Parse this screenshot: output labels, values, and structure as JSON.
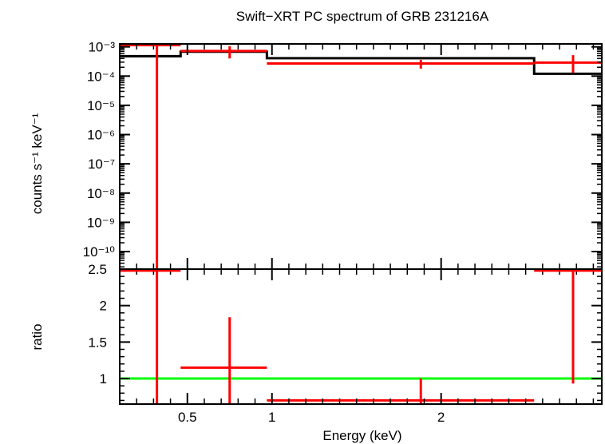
{
  "chart_data": [
    {
      "type": "line",
      "title": "Swift−XRT PC spectrum of GRB 231216A",
      "ylabel": "counts s⁻¹ keV⁻¹",
      "xlabel": "",
      "x_scale": "linear",
      "y_scale": "log",
      "xlim": [
        0.1,
        2.95
      ],
      "ylim_exponent": [
        -10.6,
        -2.9
      ],
      "y_ticks": [
        {
          "exp": -3,
          "label": "10⁻³"
        },
        {
          "exp": -4,
          "label": "10⁻⁴"
        },
        {
          "exp": -5,
          "label": "10⁻⁵"
        },
        {
          "exp": -6,
          "label": "10⁻⁶"
        },
        {
          "exp": -7,
          "label": "10⁻⁷"
        },
        {
          "exp": -8,
          "label": "10⁻⁸"
        },
        {
          "exp": -9,
          "label": "10⁻⁹"
        },
        {
          "exp": -10,
          "label": "10⁻¹⁰"
        }
      ],
      "data_points": [
        {
          "x": 0.32,
          "xlo": 0.1,
          "xhi": 0.46,
          "y": 0.00115,
          "ylo": 1e-11,
          "yhi": 0.00135
        },
        {
          "x": 0.75,
          "xlo": 0.46,
          "xhi": 0.97,
          "y": 0.00072,
          "ylo": 0.0004,
          "yhi": 0.00105
        },
        {
          "x": 1.88,
          "xlo": 0.97,
          "xhi": 2.55,
          "y": 0.00027,
          "ylo": 0.00018,
          "yhi": 0.00036
        },
        {
          "x": 2.78,
          "xlo": 2.55,
          "xhi": 2.95,
          "y": 0.00029,
          "ylo": 0.00013,
          "yhi": 0.00052
        }
      ],
      "model_steps": [
        {
          "xlo": 0.1,
          "xhi": 0.46,
          "y": 0.00048
        },
        {
          "xlo": 0.46,
          "xhi": 0.97,
          "y": 0.00068
        },
        {
          "xlo": 0.97,
          "xhi": 2.55,
          "y": 0.00041
        },
        {
          "xlo": 2.55,
          "xhi": 2.95,
          "y": 0.00012
        }
      ],
      "data_color": "#ff0000",
      "model_color": "#000000"
    },
    {
      "type": "line",
      "ylabel": "ratio",
      "xlabel": "Energy (keV)",
      "x_scale": "linear",
      "xlim": [
        0.1,
        2.95
      ],
      "ylim": [
        0.65,
        2.5
      ],
      "y_ticks": [
        {
          "v": 1,
          "label": "1"
        },
        {
          "v": 1.5,
          "label": "1.5"
        },
        {
          "v": 2,
          "label": "2"
        },
        {
          "v": 2.5,
          "label": "2.5"
        }
      ],
      "x_ticks": [
        {
          "v": 0.5,
          "label": "0.5"
        },
        {
          "v": 1,
          "label": "1"
        },
        {
          "v": 2,
          "label": "2"
        }
      ],
      "data_points": [
        {
          "x": 0.32,
          "xlo": 0.1,
          "xhi": 0.46,
          "y": 2.48,
          "ylo": 0.65,
          "yhi": 2.5
        },
        {
          "x": 0.75,
          "xlo": 0.46,
          "xhi": 0.97,
          "y": 1.15,
          "ylo": 0.65,
          "yhi": 1.84
        },
        {
          "x": 1.88,
          "xlo": 0.97,
          "xhi": 2.55,
          "y": 0.7,
          "ylo": 0.65,
          "yhi": 1.0
        },
        {
          "x": 2.78,
          "xlo": 2.55,
          "xhi": 2.95,
          "y": 2.48,
          "ylo": 0.93,
          "yhi": 2.5
        }
      ],
      "reference_line": {
        "y": 1,
        "color": "#00ff00"
      },
      "data_color": "#ff0000"
    }
  ]
}
